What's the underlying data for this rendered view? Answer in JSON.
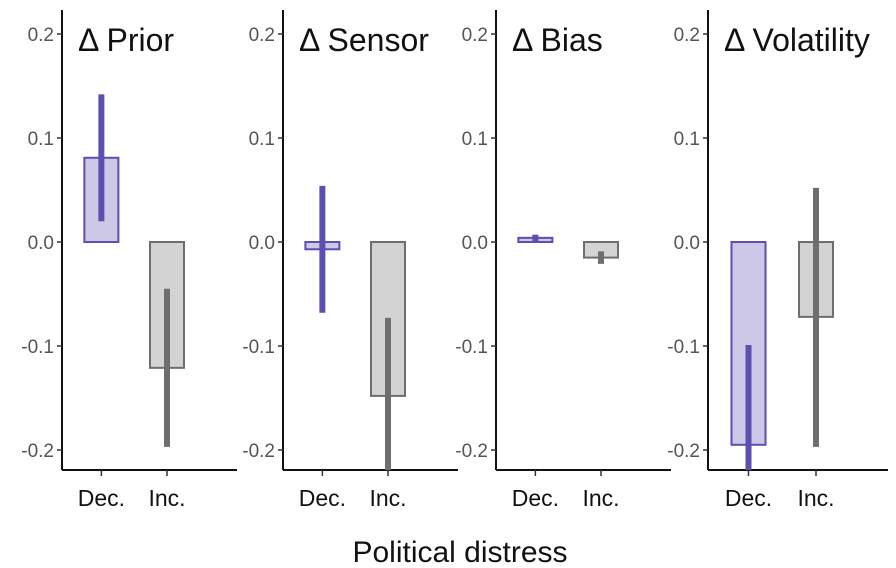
{
  "chart_data": {
    "type": "bar",
    "xlabel": "Political distress",
    "ylim": [
      -0.22,
      0.22
    ],
    "yticks": [
      0.2,
      0.1,
      0.0,
      -0.1,
      -0.2
    ],
    "ytick_labels": [
      "0.2",
      "0.1",
      "0.0",
      "-0.1",
      "-0.2"
    ],
    "categories": [
      "Dec.",
      "Inc."
    ],
    "colors": {
      "Dec.": {
        "fill": "#cdc7e8",
        "stroke": "#5b4fb0",
        "error": "#5b4fb0"
      },
      "Inc.": {
        "fill": "#d3d3d3",
        "stroke": "#6e6e6e",
        "error": "#6e6e6e"
      }
    },
    "grid": false,
    "legend": "none",
    "panels": [
      {
        "title": "Δ Prior",
        "bars": [
          {
            "category": "Dec.",
            "value": 0.081,
            "error_low": 0.02,
            "error_high": 0.142
          },
          {
            "category": "Inc.",
            "value": -0.121,
            "error_low": -0.197,
            "error_high": -0.045
          }
        ]
      },
      {
        "title": "Δ Sensor",
        "bars": [
          {
            "category": "Dec.",
            "value": -0.007,
            "error_low": -0.068,
            "error_high": 0.054
          },
          {
            "category": "Inc.",
            "value": -0.148,
            "error_low": -0.225,
            "error_high": -0.073
          }
        ]
      },
      {
        "title": "Δ Bias",
        "bars": [
          {
            "category": "Dec.",
            "value": 0.004,
            "error_low": 0.001,
            "error_high": 0.007
          },
          {
            "category": "Inc.",
            "value": -0.015,
            "error_low": -0.021,
            "error_high": -0.009
          }
        ]
      },
      {
        "title": "Δ Volatility",
        "bars": [
          {
            "category": "Dec.",
            "value": -0.195,
            "error_low": -0.225,
            "error_high": -0.099
          },
          {
            "category": "Inc.",
            "value": -0.072,
            "error_low": -0.197,
            "error_high": 0.052
          }
        ]
      }
    ]
  }
}
